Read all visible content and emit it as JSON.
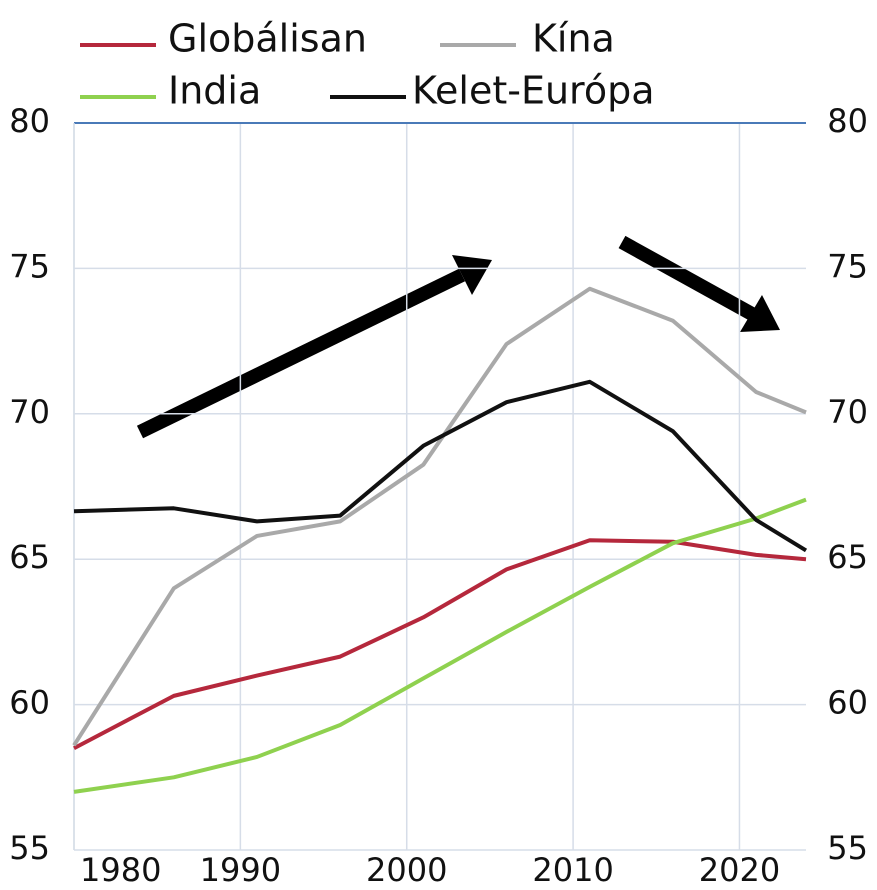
{
  "chart_data": {
    "type": "line",
    "x": [
      1980,
      1986,
      1991,
      1996,
      2001,
      2006,
      2011,
      2016,
      2021,
      2024
    ],
    "series": [
      {
        "name": "Globálisan",
        "color": "#b5283c",
        "values": [
          58.5,
          60.3,
          61.0,
          61.65,
          63.0,
          64.65,
          65.65,
          65.6,
          65.15,
          65.0
        ]
      },
      {
        "name": "Kína",
        "color": "#a9a9a9",
        "values": [
          58.6,
          64.0,
          65.8,
          66.3,
          68.25,
          72.4,
          74.3,
          73.2,
          70.75,
          70.05
        ]
      },
      {
        "name": "India",
        "color": "#8fd14f",
        "values": [
          57.0,
          57.5,
          58.2,
          59.3,
          60.9,
          62.5,
          64.05,
          65.55,
          66.4,
          67.05
        ]
      },
      {
        "name": "Kelet-Európa",
        "color": "#111111",
        "values": [
          66.65,
          66.75,
          66.3,
          66.5,
          68.9,
          70.4,
          71.1,
          69.4,
          66.35,
          65.3
        ]
      }
    ],
    "xlim": [
      1980,
      2024
    ],
    "xticks": [
      1980,
      1990,
      2000,
      2010,
      2020
    ],
    "ylim": [
      55,
      80
    ],
    "yticks": [
      55,
      60,
      65,
      70,
      75,
      80
    ],
    "y2lim": [
      55,
      80
    ],
    "y2ticks": [
      55,
      60,
      65,
      70,
      75,
      80
    ],
    "grid": true
  }
}
